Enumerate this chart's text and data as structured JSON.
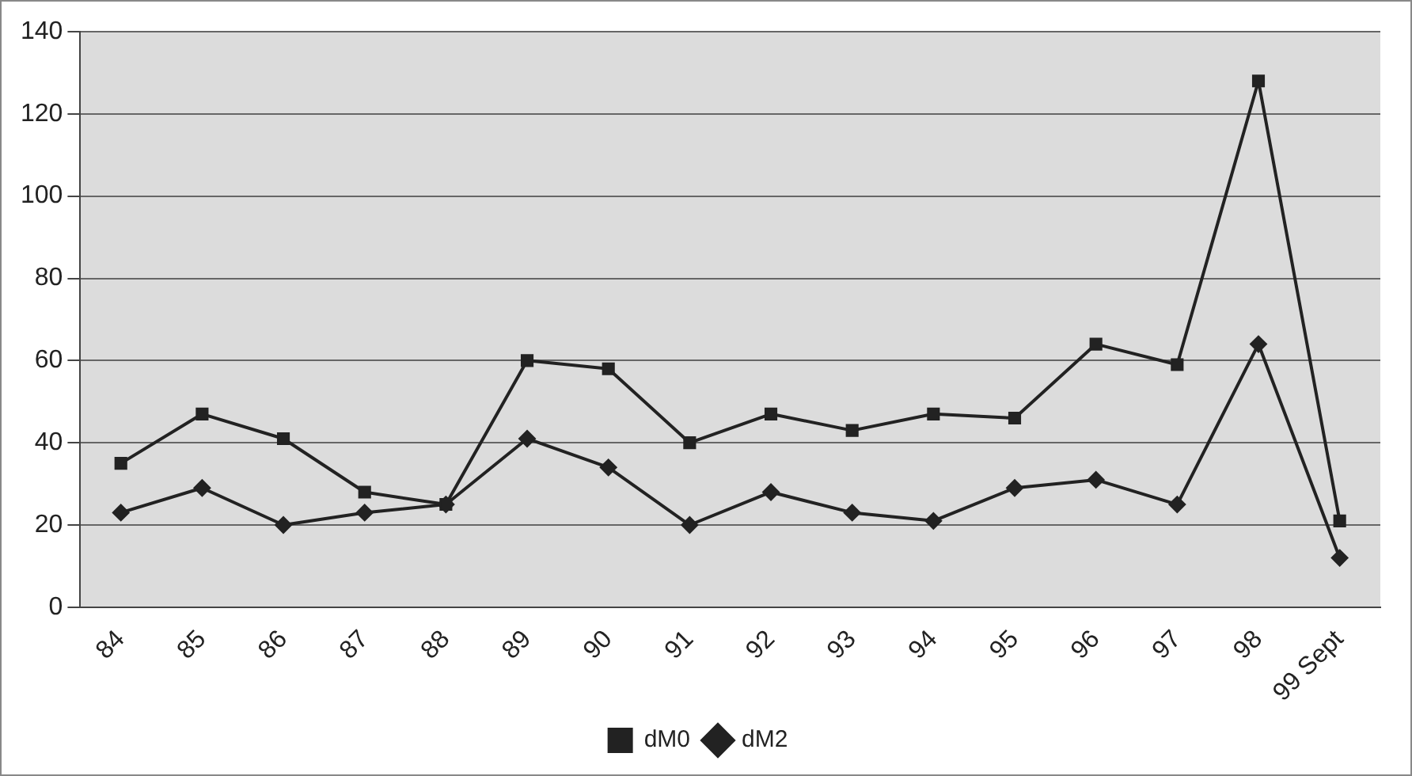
{
  "chart_data": {
    "type": "line",
    "categories": [
      "84",
      "85",
      "86",
      "87",
      "88",
      "89",
      "90",
      "91",
      "92",
      "93",
      "94",
      "95",
      "96",
      "97",
      "98",
      "99 Sept"
    ],
    "series": [
      {
        "name": "dM0",
        "color": "#222222",
        "marker": "square",
        "values": [
          35,
          47,
          41,
          28,
          25,
          60,
          58,
          40,
          47,
          43,
          47,
          46,
          64,
          59,
          128,
          21
        ]
      },
      {
        "name": "dM2",
        "color": "#222222",
        "marker": "diamond",
        "values": [
          23,
          29,
          20,
          23,
          25,
          41,
          34,
          20,
          28,
          23,
          21,
          29,
          31,
          25,
          64,
          12
        ]
      }
    ],
    "ylim": [
      0,
      140
    ],
    "yticks": [
      0,
      20,
      40,
      60,
      80,
      100,
      120,
      140
    ],
    "grid": "y",
    "legend": "bottom",
    "line_style": "solid"
  }
}
